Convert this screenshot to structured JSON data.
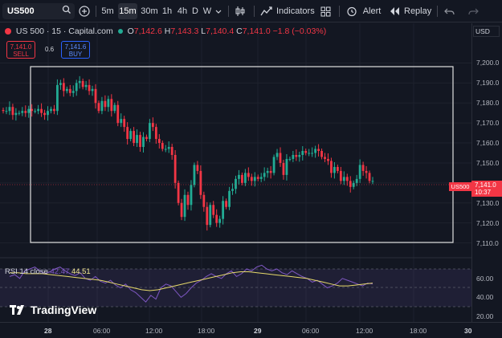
{
  "toolbar": {
    "symbol": "US500",
    "intervals": [
      "5m",
      "15m",
      "30m",
      "1h",
      "4h",
      "D",
      "W"
    ],
    "active_interval": "15m",
    "indicators_label": "Indicators",
    "alert_label": "Alert",
    "replay_label": "Replay"
  },
  "legend": {
    "title": "US 500 · 15 · Capital.com",
    "o_label": "O",
    "o": "7,142.6",
    "h_label": "H",
    "h": "7,143.3",
    "l_label": "L",
    "l": "7,140.4",
    "c_label": "C",
    "c": "7,141.0",
    "change": "−1.8 (−0.03%)",
    "sell_price": "7,141.0",
    "sell_label": "SELL",
    "spread": "0.6",
    "buy_price": "7,141.6",
    "buy_label": "BUY"
  },
  "price_axis": {
    "currency": "USD",
    "ticks": [
      "7,200.0",
      "7,190.0",
      "7,180.0",
      "7,170.0",
      "7,160.0",
      "7,150.0",
      "7,140.0",
      "7,130.0",
      "7,120.0",
      "7,110.0"
    ],
    "symbol_tag": "US500",
    "last_price": "7,141.0",
    "countdown": "10:37"
  },
  "rsi": {
    "label": "RSI 14 close",
    "value1": "42.47",
    "value2": "44.51",
    "ticks": [
      "60.00",
      "40.00",
      "20.00"
    ]
  },
  "time_axis": {
    "ticks": [
      "28",
      "06:00",
      "12:00",
      "18:00",
      "29",
      "06:00",
      "12:00",
      "18:00",
      "30"
    ]
  },
  "brand": "TradingView",
  "colors": {
    "up": "#22ab94",
    "down": "#f23645",
    "rsi": "#7e57c2",
    "rsi_ma": "#e6d96a"
  },
  "chart_data": {
    "type": "candlestick",
    "ylim": [
      7105,
      7205
    ],
    "closes": [
      7176,
      7176,
      7178,
      7174,
      7175,
      7175,
      7176,
      7175,
      7177,
      7176,
      7176,
      7177,
      7175,
      7174,
      7176,
      7177,
      7176,
      7189,
      7190,
      7186,
      7187,
      7185,
      7186,
      7190,
      7191,
      7188,
      7189,
      7186,
      7187,
      7180,
      7176,
      7181,
      7178,
      7182,
      7176,
      7179,
      7170,
      7172,
      7168,
      7162,
      7166,
      7160,
      7164,
      7158,
      7163,
      7162,
      7170,
      7168,
      7162,
      7160,
      7157,
      7157,
      7158,
      7154,
      7140,
      7130,
      7123,
      7134,
      7129,
      7139,
      7149,
      7146,
      7134,
      7128,
      7119,
      7129,
      7124,
      7120,
      7122,
      7131,
      7128,
      7136,
      7137,
      7142,
      7144,
      7140,
      7145,
      7143,
      7141,
      7143,
      7142,
      7143,
      7145,
      7146,
      7145,
      7153,
      7155,
      7150,
      7144,
      7152,
      7152,
      7154,
      7153,
      7154,
      7156,
      7155,
      7155,
      7155,
      7157,
      7156,
      7153,
      7152,
      7151,
      7145,
      7148,
      7146,
      7141,
      7143,
      7141,
      7138,
      7140,
      7142,
      7149,
      7146,
      7145,
      7141,
      7141
    ],
    "rsi_values": [
      52,
      54,
      50,
      58,
      60,
      62,
      58,
      55,
      57,
      60,
      62,
      58,
      55,
      53,
      56,
      50,
      48,
      52,
      47,
      45,
      48,
      43,
      40,
      44,
      38,
      35,
      30,
      25,
      32,
      28,
      40,
      44,
      42,
      36,
      30,
      34,
      40,
      45,
      48,
      52,
      55,
      52,
      50,
      55,
      58,
      52,
      55,
      60,
      58,
      62,
      64,
      60,
      58,
      60,
      56,
      54,
      58,
      55,
      52,
      50,
      46,
      48,
      44,
      40,
      42,
      45,
      50,
      48,
      46,
      44,
      42,
      45,
      44
    ],
    "rsi_ma_values": [
      56,
      56,
      55,
      55,
      55,
      54,
      53,
      52,
      51,
      50,
      49,
      48,
      46,
      44,
      42,
      40,
      38,
      37,
      38,
      40,
      42,
      44,
      46,
      48,
      50,
      52,
      54,
      56,
      57,
      57,
      56,
      55,
      54,
      53,
      52,
      51,
      50,
      48,
      46,
      44,
      42,
      42,
      43,
      44,
      45
    ],
    "rsi_ylim": [
      15,
      70
    ]
  }
}
